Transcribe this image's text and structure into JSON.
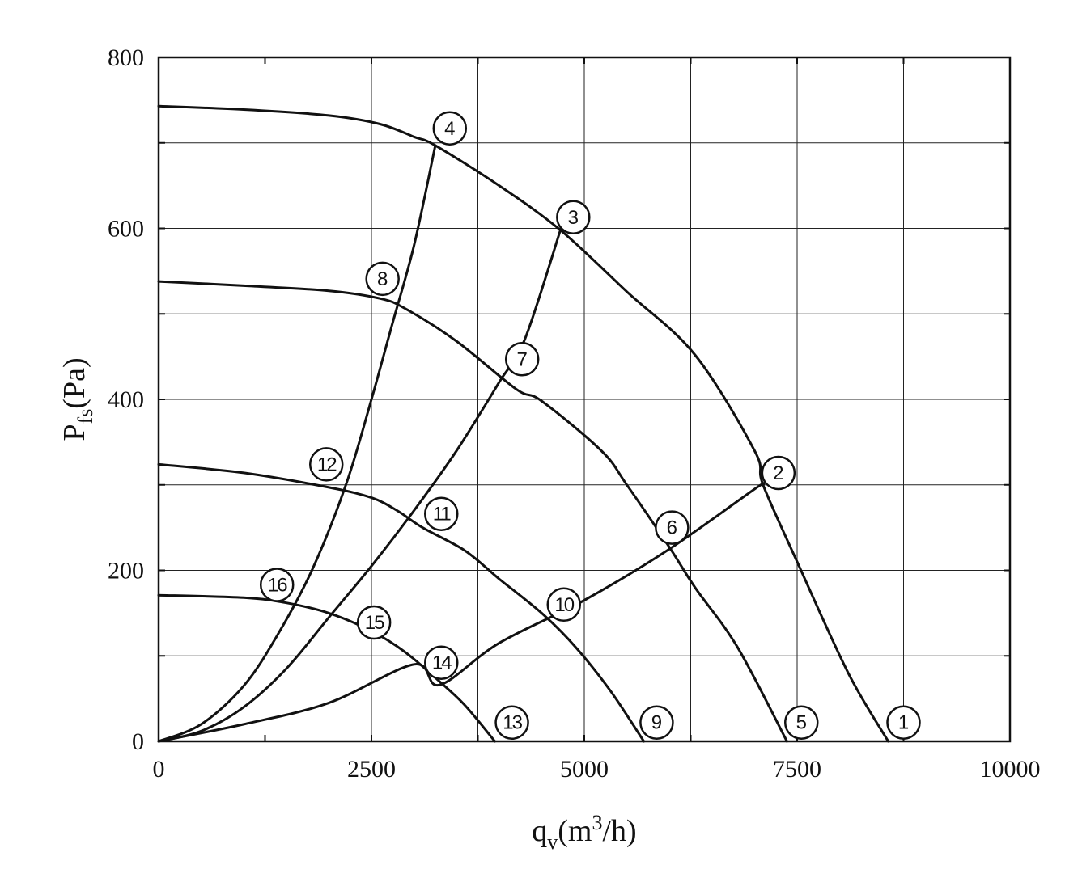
{
  "chart_data": {
    "type": "line",
    "xlabel": {
      "base": "q",
      "sub": "v",
      "unit_pre": "(m",
      "sup": "3",
      "unit_post": "/h)"
    },
    "ylabel": {
      "base": "P",
      "sub": "fs",
      "unit": "(Pa)"
    },
    "xlim": [
      0,
      10000
    ],
    "ylim": [
      0,
      800
    ],
    "xticks": [
      0,
      2500,
      5000,
      7500,
      10000
    ],
    "xtick_labels": [
      "0",
      "2500",
      "5000",
      "7500",
      "10000"
    ],
    "yticks": [
      0,
      200,
      400,
      600,
      800
    ],
    "ytick_labels": [
      "0",
      "200",
      "400",
      "600",
      "800"
    ],
    "grid": true,
    "series": [
      {
        "points": [
          [
            0,
            743
          ],
          [
            1000,
            739
          ],
          [
            2000,
            732
          ],
          [
            2600,
            722
          ],
          [
            3000,
            707
          ],
          [
            3250,
            697
          ],
          [
            4000,
            650
          ],
          [
            4720,
            598
          ],
          [
            5500,
            526
          ],
          [
            6300,
            452
          ],
          [
            7000,
            340
          ],
          [
            7100,
            300
          ],
          [
            7500,
            210
          ],
          [
            8100,
            80
          ],
          [
            8570,
            0
          ]
        ]
      },
      {
        "points": [
          [
            0,
            538
          ],
          [
            1000,
            533
          ],
          [
            2000,
            527
          ],
          [
            2600,
            518
          ],
          [
            2900,
            506
          ],
          [
            3500,
            468
          ],
          [
            4200,
            412
          ],
          [
            4500,
            398
          ],
          [
            5200,
            340
          ],
          [
            5500,
            300
          ],
          [
            6000,
            227
          ],
          [
            6300,
            180
          ],
          [
            6800,
            110
          ],
          [
            7380,
            0
          ]
        ]
      },
      {
        "points": [
          [
            0,
            324
          ],
          [
            1000,
            314
          ],
          [
            2000,
            297
          ],
          [
            2500,
            285
          ],
          [
            2800,
            270
          ],
          [
            3100,
            250
          ],
          [
            3600,
            223
          ],
          [
            4000,
            190
          ],
          [
            4500,
            150
          ],
          [
            4900,
            110
          ],
          [
            5300,
            60
          ],
          [
            5700,
            0
          ]
        ]
      },
      {
        "points": [
          [
            0,
            171
          ],
          [
            1000,
            168
          ],
          [
            1500,
            162
          ],
          [
            2000,
            150
          ],
          [
            2500,
            129
          ],
          [
            2900,
            104
          ],
          [
            3300,
            70
          ],
          [
            3600,
            42
          ],
          [
            3950,
            0
          ]
        ]
      },
      {
        "points": [
          [
            0,
            0
          ],
          [
            1000,
            20
          ],
          [
            2000,
            45
          ],
          [
            3000,
            90
          ],
          [
            3300,
            66
          ],
          [
            4000,
            115
          ],
          [
            5000,
            165
          ],
          [
            6000,
            225
          ],
          [
            7000,
            295
          ],
          [
            7100,
            300
          ]
        ]
      },
      {
        "points": [
          [
            0,
            0
          ],
          [
            500,
            12
          ],
          [
            1000,
            40
          ],
          [
            1500,
            85
          ],
          [
            2000,
            145
          ],
          [
            2500,
            205
          ],
          [
            3000,
            270
          ],
          [
            3500,
            340
          ],
          [
            4000,
            420
          ],
          [
            4300,
            470
          ],
          [
            4720,
            598
          ]
        ]
      },
      {
        "points": [
          [
            0,
            0
          ],
          [
            500,
            20
          ],
          [
            1000,
            65
          ],
          [
            1400,
            125
          ],
          [
            1800,
            200
          ],
          [
            2200,
            300
          ],
          [
            2500,
            400
          ],
          [
            2750,
            490
          ],
          [
            3000,
            580
          ],
          [
            3250,
            697
          ]
        ]
      }
    ],
    "annotations": [
      {
        "label": "1",
        "x": 8750,
        "y": 22
      },
      {
        "label": "2",
        "x": 7280,
        "y": 314
      },
      {
        "label": "3",
        "x": 4870,
        "y": 613
      },
      {
        "label": "4",
        "x": 3420,
        "y": 717
      },
      {
        "label": "5",
        "x": 7550,
        "y": 22
      },
      {
        "label": "6",
        "x": 6030,
        "y": 250
      },
      {
        "label": "7",
        "x": 4270,
        "y": 447
      },
      {
        "label": "8",
        "x": 2630,
        "y": 541
      },
      {
        "label": "9",
        "x": 5850,
        "y": 22
      },
      {
        "label": "10",
        "x": 4760,
        "y": 160
      },
      {
        "label": "11",
        "x": 3320,
        "y": 266
      },
      {
        "label": "12",
        "x": 1970,
        "y": 324
      },
      {
        "label": "13",
        "x": 4150,
        "y": 22
      },
      {
        "label": "14",
        "x": 3320,
        "y": 92
      },
      {
        "label": "15",
        "x": 2530,
        "y": 139
      },
      {
        "label": "16",
        "x": 1390,
        "y": 183
      }
    ]
  }
}
